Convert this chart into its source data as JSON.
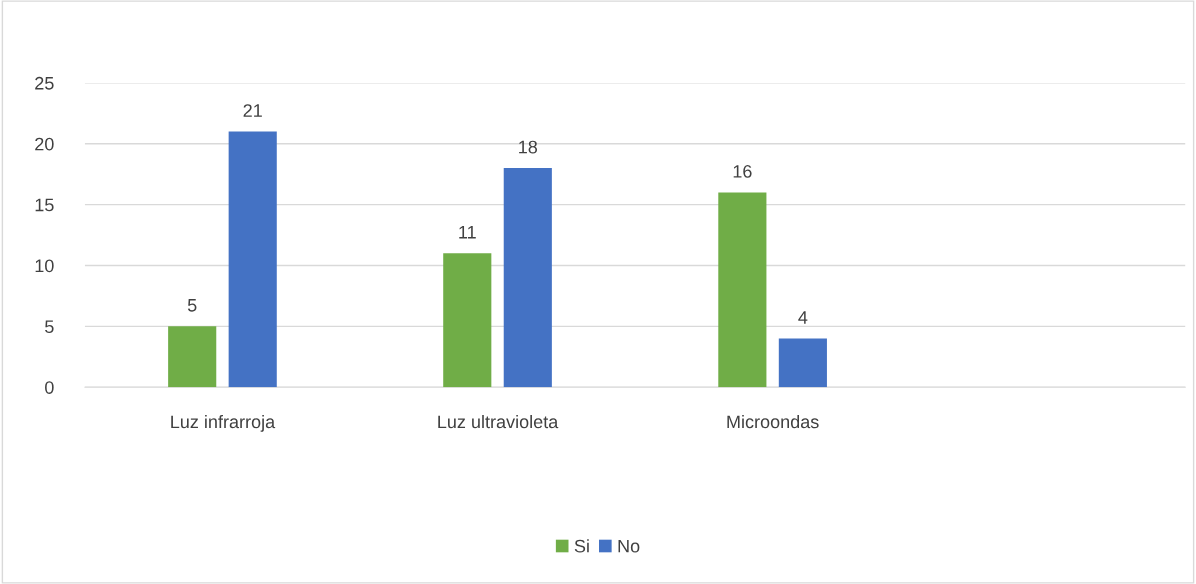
{
  "chart_data": {
    "type": "bar",
    "categories": [
      "Luz infrarroja",
      "Luz ultravioleta",
      "Microondas",
      null
    ],
    "series": [
      {
        "name": "Si",
        "color": "#70ad47",
        "values": [
          5,
          11,
          16,
          null
        ]
      },
      {
        "name": "No",
        "color": "#4472c4",
        "values": [
          21,
          18,
          4,
          null
        ]
      }
    ],
    "ylim": [
      0,
      25
    ],
    "yticks": [
      0,
      5,
      10,
      15,
      20,
      25
    ],
    "grid": "y",
    "legend": "bottom",
    "data_labels": true
  }
}
